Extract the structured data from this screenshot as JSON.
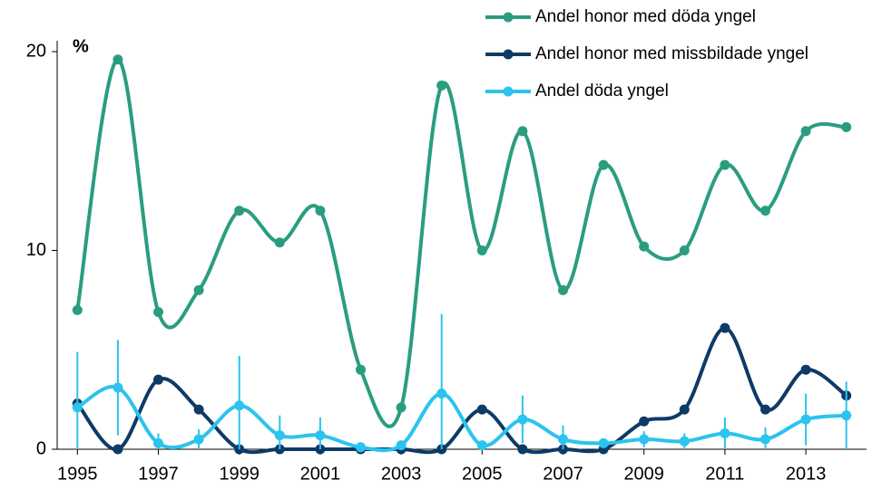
{
  "chart_data": {
    "type": "line",
    "y_label": "%",
    "x": [
      1995,
      1996,
      1997,
      1998,
      1999,
      2000,
      2001,
      2002,
      2003,
      2004,
      2005,
      2006,
      2007,
      2008,
      2009,
      2010,
      2011,
      2012,
      2013,
      2014
    ],
    "xlim": [
      1994.5,
      2014.5
    ],
    "xticks": [
      1995,
      1997,
      1999,
      2001,
      2003,
      2005,
      2007,
      2009,
      2011,
      2013
    ],
    "ylim": [
      0,
      20
    ],
    "yticks": [
      0,
      10,
      20
    ],
    "smooth": true,
    "series": [
      {
        "name": "Andel honor med döda yngel",
        "color": "#2a9d80",
        "values": [
          7.0,
          19.6,
          6.9,
          8.0,
          12.0,
          10.4,
          12.0,
          4.0,
          2.1,
          18.3,
          10.0,
          16.0,
          8.0,
          14.3,
          10.2,
          10.0,
          14.3,
          12.0,
          16.0,
          16.2
        ]
      },
      {
        "name": "Andel honor med missbildade yngel",
        "color": "#0e3a66",
        "values": [
          2.3,
          0,
          3.5,
          2.0,
          0,
          0,
          0,
          0,
          0,
          0,
          2.0,
          0,
          0,
          0,
          1.4,
          2.0,
          6.1,
          2.0,
          4.0,
          2.7
        ]
      },
      {
        "name": "Andel döda yngel",
        "color": "#2cc3ee",
        "values": [
          2.1,
          3.1,
          0.3,
          0.5,
          2.2,
          0.7,
          0.7,
          0.1,
          0.2,
          2.8,
          0.2,
          1.5,
          0.5,
          0.3,
          0.5,
          0.4,
          0.8,
          0.5,
          1.5,
          1.7
        ],
        "errors": [
          2.8,
          2.4,
          0.5,
          0.5,
          2.5,
          1.0,
          0.9,
          0.1,
          0.1,
          4.0,
          0.1,
          1.2,
          0.7,
          0.1,
          0.4,
          0.4,
          0.8,
          0.6,
          1.3,
          1.7
        ]
      }
    ]
  }
}
